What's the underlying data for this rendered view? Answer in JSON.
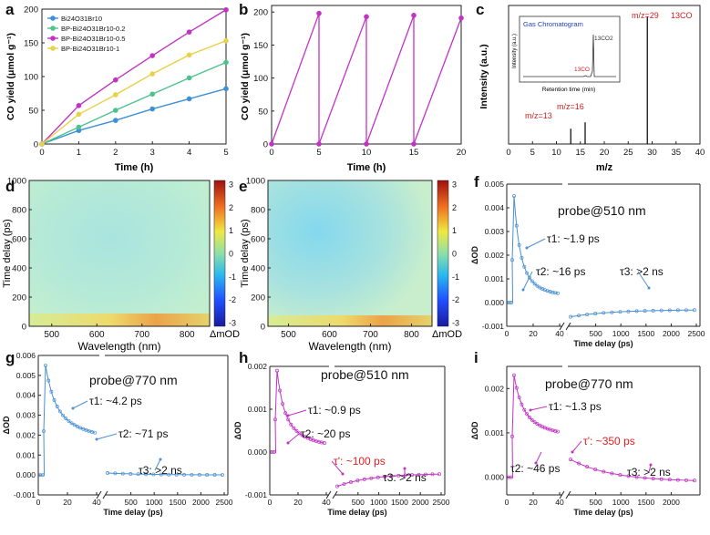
{
  "figure": {
    "panel_letters": [
      "a",
      "b",
      "c",
      "d",
      "e",
      "f",
      "g",
      "h",
      "i"
    ]
  },
  "chart_data": [
    {
      "panel": "a",
      "type": "line",
      "xlabel": "Time (h)",
      "ylabel": "CO yield (μmol g⁻¹)",
      "xlim": [
        0,
        5
      ],
      "ylim": [
        0,
        200
      ],
      "xticks": [
        "0",
        "1",
        "2",
        "3",
        "4",
        "5"
      ],
      "yticks": [
        "0",
        "50",
        "100",
        "150",
        "200"
      ],
      "series": [
        {
          "name": "Bi24O31Br10",
          "color": "#3d8fd6",
          "x": [
            0,
            1,
            2,
            3,
            4,
            5
          ],
          "values": [
            0,
            20,
            35,
            52,
            67,
            82
          ]
        },
        {
          "name": "BP-Bi24O31Br10-0.2",
          "color": "#4cc28d",
          "x": [
            0,
            1,
            2,
            3,
            4,
            5
          ],
          "values": [
            0,
            25,
            50,
            74,
            98,
            121
          ]
        },
        {
          "name": "BP-Bi24O31Br10-0.5",
          "color": "#c233c4",
          "x": [
            0,
            1,
            2,
            3,
            4,
            5
          ],
          "values": [
            0,
            57,
            95,
            131,
            166,
            199
          ]
        },
        {
          "name": "BP-Bi24O31Br10-1",
          "color": "#e8d24a",
          "x": [
            0,
            1,
            2,
            3,
            4,
            5
          ],
          "values": [
            0,
            44,
            73,
            104,
            132,
            153
          ]
        }
      ]
    },
    {
      "panel": "b",
      "type": "line",
      "xlabel": "Time (h)",
      "ylabel": "CO yield (μmol g⁻¹)",
      "xlim": [
        0,
        20
      ],
      "ylim": [
        0,
        210
      ],
      "xticks": [
        "0",
        "5",
        "10",
        "15",
        "20"
      ],
      "yticks": [
        "0",
        "50",
        "100",
        "150",
        "200"
      ],
      "series": [
        {
          "name": "cycling",
          "color": "#c233c4",
          "x": [
            0,
            5,
            5,
            10,
            10,
            15,
            15,
            20
          ],
          "values": [
            0,
            198,
            0,
            193,
            0,
            195,
            0,
            191
          ]
        }
      ]
    },
    {
      "panel": "c",
      "type": "bar",
      "xlabel": "m/z",
      "ylabel": "Intensity (a.u.)",
      "xlim": [
        0,
        40
      ],
      "xticks": [
        "0",
        "5",
        "10",
        "15",
        "20",
        "25",
        "30",
        "35",
        "40"
      ],
      "peaks": [
        {
          "x": 13,
          "value": 0.12
        },
        {
          "x": 16,
          "value": 0.17
        },
        {
          "x": 29,
          "value": 1.0
        }
      ],
      "annotations": [
        "m/z=13",
        "m/z=16",
        "m/z=29",
        "13CO"
      ],
      "inset": {
        "title": "Gas Chromatogram",
        "xlabel": "Retention time (min)",
        "ylabel": "Intensity (a.u.)",
        "annotations": [
          "13CO2",
          "13CO"
        ]
      }
    },
    {
      "panel": "d",
      "type": "heatmap",
      "xlabel": "Wavelength (nm)",
      "ylabel": "Time delay (ps)",
      "xlim": [
        450,
        850
      ],
      "ylim": [
        0,
        1000
      ],
      "xticks": [
        "500",
        "600",
        "700",
        "800"
      ],
      "yticks": [
        "0",
        "200",
        "400",
        "600",
        "800",
        "1000"
      ],
      "colorbar": {
        "label": "ΔmOD",
        "range": [
          -3,
          3
        ],
        "ticks": [
          "-3",
          "-2",
          "-1",
          "0",
          "1",
          "2",
          "3"
        ]
      }
    },
    {
      "panel": "e",
      "type": "heatmap",
      "xlabel": "Wavelength (nm)",
      "ylabel": "Time delay (ps)",
      "xlim": [
        450,
        850
      ],
      "ylim": [
        0,
        1000
      ],
      "xticks": [
        "500",
        "600",
        "700",
        "800"
      ],
      "yticks": [
        "0",
        "200",
        "400",
        "600",
        "800",
        "1000"
      ],
      "colorbar": {
        "label": "ΔmOD",
        "range": [
          -3,
          3
        ],
        "ticks": [
          "-3",
          "-2",
          "-1",
          "0",
          "1",
          "2",
          "3"
        ]
      }
    },
    {
      "panel": "f",
      "type": "scatter",
      "xlabel": "Time delay (ps)",
      "ylabel": "ΔOD",
      "ylim": [
        -0.001,
        0.005
      ],
      "xticks": [
        "0",
        "20",
        "40",
        "500",
        "1000",
        "1500",
        "2000",
        "2500"
      ],
      "yticks": [
        "-0.001",
        "0.000",
        "0.001",
        "0.002",
        "0.003",
        "0.004",
        "0.005"
      ],
      "probe": "probe@510 nm",
      "color": "#4a90d2",
      "annotations": [
        "τ1: ~1.9 ps",
        "τ2: ~16 ps",
        "τ3: >2 ns"
      ],
      "peak": 0.0045,
      "plateau_after_break": -0.0006,
      "end": -0.0003
    },
    {
      "panel": "g",
      "type": "scatter",
      "xlabel": "Time delay (ps)",
      "ylabel": "ΔOD",
      "ylim": [
        -0.001,
        0.006
      ],
      "xticks": [
        "0",
        "20",
        "40",
        "500",
        "1000",
        "1500",
        "2000",
        "2500"
      ],
      "yticks": [
        "-0.001",
        "0.000",
        "0.001",
        "0.002",
        "0.003",
        "0.004",
        "0.005",
        "0.006"
      ],
      "probe": "probe@770 nm",
      "color": "#4a90d2",
      "annotations": [
        "τ1: ~4.2 ps",
        "τ2: ~71 ps",
        "τ3: >2 ns"
      ],
      "peak": 0.0055,
      "plateau_after_break": 0.0001,
      "end": 0.0
    },
    {
      "panel": "h",
      "type": "scatter",
      "xlabel": "Time delay (ps)",
      "ylabel": "ΔOD",
      "ylim": [
        -0.001,
        0.002
      ],
      "xticks": [
        "0",
        "20",
        "40",
        "500",
        "1000",
        "1500",
        "2000",
        "2500"
      ],
      "yticks": [
        "-0.001",
        "0.000",
        "0.001",
        "0.002"
      ],
      "probe": "probe@510 nm",
      "color": "#c233c4",
      "annotations": [
        "τ1: ~0.9 ps",
        "τ2: ~20 ps",
        "τ': ~100 ps",
        "τ3: >2 ns"
      ],
      "peak": 0.0019,
      "plateau_after_break": -0.0008,
      "end": -0.0005
    },
    {
      "panel": "i",
      "type": "scatter",
      "xlabel": "Time delay (ps)",
      "ylabel": "ΔOD",
      "ylim": [
        -0.0004,
        0.0025
      ],
      "xticks": [
        "0",
        "20",
        "40",
        "500",
        "1000",
        "1500",
        "2000"
      ],
      "yticks": [
        "0.000",
        "0.001",
        "0.002"
      ],
      "probe": "probe@770 nm",
      "color": "#c233c4",
      "annotations": [
        "τ1: ~1.3 ps",
        "τ2: ~46 ps",
        "τ': ~350 ps",
        "τ3: >2 ns"
      ],
      "peak": 0.0023,
      "plateau_after_break": 0.0004,
      "end": -0.0001
    }
  ]
}
